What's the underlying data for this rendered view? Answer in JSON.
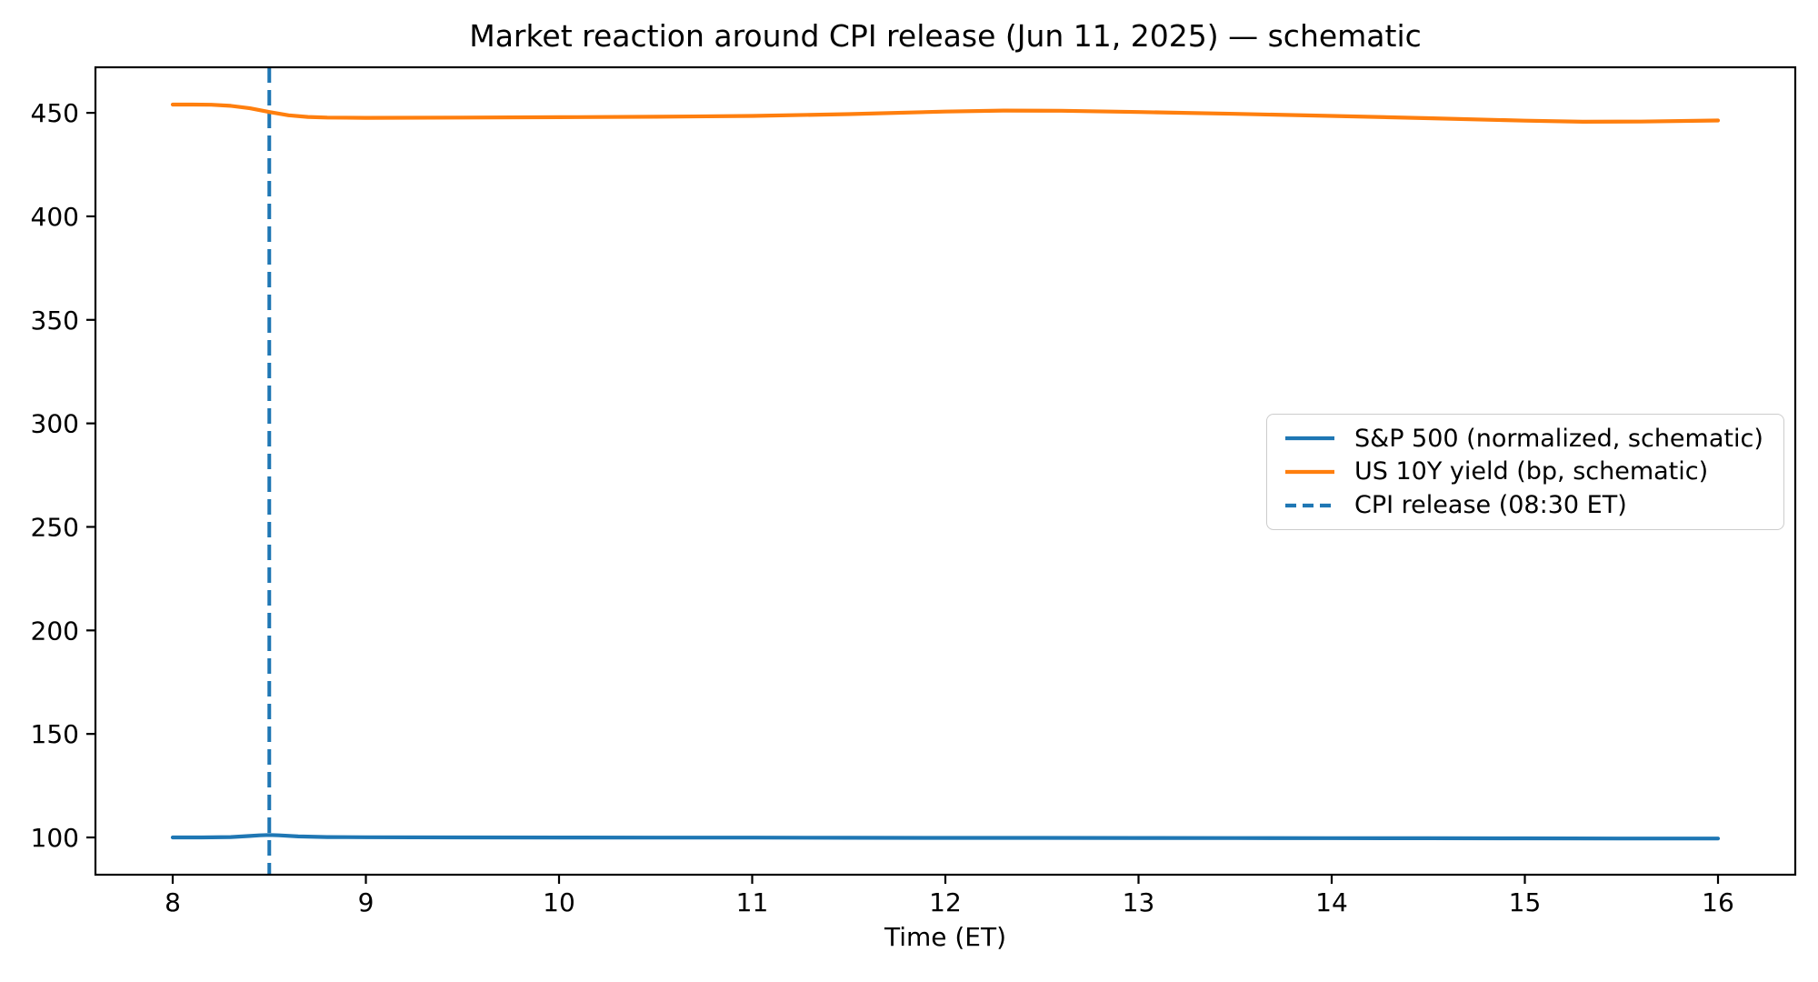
{
  "chart_data": {
    "type": "line",
    "title": "Market reaction around CPI release (Jun 11, 2025) — schematic",
    "xlabel": "Time (ET)",
    "ylabel": "",
    "xlim": [
      7.6,
      16.4
    ],
    "ylim": [
      82,
      472
    ],
    "x_ticks": [
      8,
      9,
      10,
      11,
      12,
      13,
      14,
      15,
      16
    ],
    "y_ticks": [
      100,
      150,
      200,
      250,
      300,
      350,
      400,
      450
    ],
    "grid": false,
    "axis_color": "#000000",
    "series": [
      {
        "name": "S&P 500 (normalized, schematic)",
        "color": "#1f77b4",
        "dash": "solid",
        "x": [
          8.0,
          8.15,
          8.3,
          8.4,
          8.45,
          8.5,
          8.55,
          8.65,
          8.8,
          9.0,
          9.5,
          10.0,
          10.5,
          11.0,
          11.5,
          12.0,
          12.5,
          13.0,
          13.5,
          14.0,
          14.5,
          15.0,
          15.5,
          16.0
        ],
        "y": [
          100.0,
          100.0,
          100.2,
          100.7,
          101.0,
          101.2,
          101.0,
          100.5,
          100.2,
          100.1,
          100.0,
          99.95,
          99.9,
          99.9,
          99.85,
          99.8,
          99.8,
          99.75,
          99.7,
          99.65,
          99.6,
          99.55,
          99.5,
          99.5
        ]
      },
      {
        "name": "US 10Y yield (bp, schematic)",
        "color": "#ff7f0e",
        "dash": "solid",
        "x": [
          8.0,
          8.1,
          8.2,
          8.3,
          8.4,
          8.5,
          8.6,
          8.7,
          8.8,
          9.0,
          9.5,
          10.0,
          10.5,
          11.0,
          11.5,
          12.0,
          12.3,
          12.6,
          13.0,
          13.5,
          14.0,
          14.5,
          15.0,
          15.3,
          15.6,
          16.0
        ],
        "y": [
          454.0,
          454.0,
          453.9,
          453.4,
          452.2,
          450.4,
          448.8,
          448.0,
          447.7,
          447.6,
          447.7,
          447.9,
          448.1,
          448.5,
          449.4,
          450.6,
          451.1,
          451.0,
          450.4,
          449.5,
          448.5,
          447.4,
          446.2,
          445.7,
          445.8,
          446.3
        ]
      }
    ],
    "vlines": [
      {
        "x": 8.5,
        "color": "#1f77b4",
        "dash": "dashed",
        "label": "CPI release (08:30 ET)"
      }
    ],
    "legend": {
      "position": "center right",
      "entries": [
        {
          "label": "S&P 500 (normalized, schematic)",
          "color": "#1f77b4",
          "dash": "solid"
        },
        {
          "label": "US 10Y yield (bp, schematic)",
          "color": "#ff7f0e",
          "dash": "solid"
        },
        {
          "label": "CPI release (08:30 ET)",
          "color": "#1f77b4",
          "dash": "dashed"
        }
      ]
    }
  }
}
